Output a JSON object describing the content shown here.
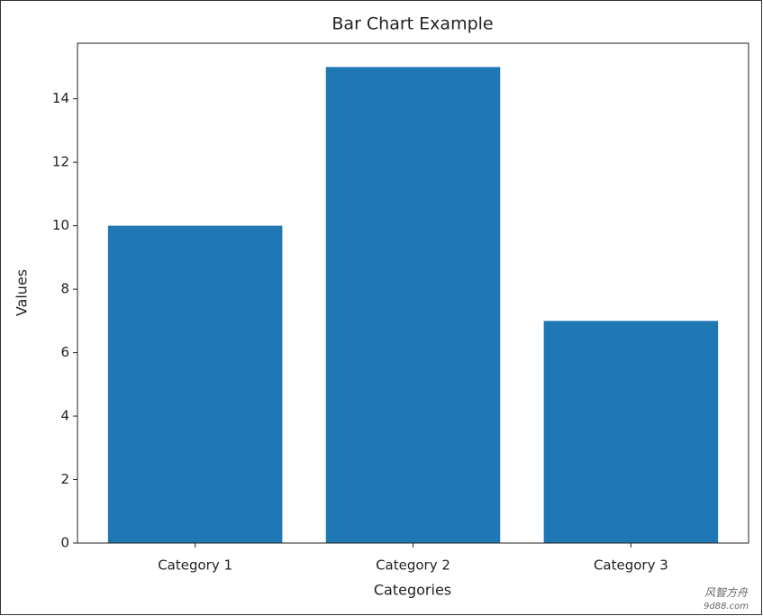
{
  "chart_data": {
    "type": "bar",
    "title": "Bar Chart Example",
    "categories": [
      "Category 1",
      "Category 2",
      "Category 3"
    ],
    "values": [
      10,
      15,
      7
    ],
    "color": "#1f77b4",
    "xlabel": "Categories",
    "ylabel": "Values",
    "ylim": [
      0,
      15.75
    ],
    "yticks": [
      0,
      2,
      4,
      6,
      8,
      10,
      12,
      14
    ],
    "grid": false
  },
  "watermark": {
    "name": "风智方舟",
    "site": "9d88.com"
  }
}
